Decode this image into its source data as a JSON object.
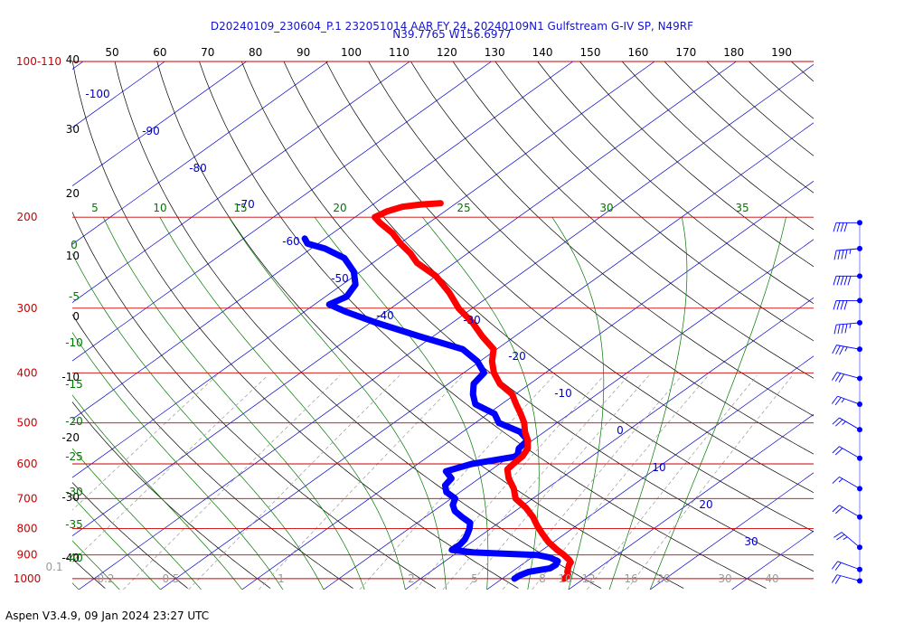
{
  "footer": "Aspen V3.4.9, 09 Jan 2024  23:27 UTC",
  "chart_data": {
    "type": "skew-t",
    "title": "D20240109_230604_P.1 232051014 AAR FY 24, 20240109N1 Gulfstream G-IV SP, N49RF",
    "subtitle": "N39.7765 W156.6977",
    "colors": {
      "title": "#1515c8",
      "isobar": "#cc0000",
      "isotherm": "#0000cc",
      "dry_adiabat": "#000000",
      "moist_adiabat": "#007700",
      "mixing_ratio": "#9a9a9a",
      "temperature": "#ff0000",
      "dewpoint": "#0000ff",
      "wind": "#0000ff"
    },
    "pressure_labels": [
      "100-110",
      "200",
      "300",
      "400",
      "500",
      "600",
      "700",
      "800",
      "900",
      "1000"
    ],
    "dry_adiabat_top_labels": [
      "50",
      "60",
      "70",
      "80",
      "90",
      "100",
      "110",
      "120",
      "130",
      "140",
      "150",
      "160",
      "170",
      "180",
      "190"
    ],
    "left_height_labels": [
      "40",
      "30",
      "20",
      "10",
      "0",
      "-10",
      "-20",
      "-30",
      "-40"
    ],
    "isotherm_labels": [
      "-100",
      "-90",
      "-80",
      "-70",
      "-60",
      "-50",
      "-40",
      "-30",
      "-20",
      "-10",
      "0",
      "10",
      "20",
      "30"
    ],
    "moist_top_labels": [
      "5",
      "10",
      "15",
      "20",
      "25",
      "30",
      "35"
    ],
    "moist_left_labels": [
      "0",
      "-5",
      "-10",
      "-15",
      "-20",
      "-25",
      "-30",
      "-35",
      "-40"
    ],
    "mixing_ratio_labels": [
      "0.1",
      "0.2",
      "0.5",
      "1",
      "2",
      "5",
      "8",
      "10",
      "12",
      "16",
      "20",
      "30",
      "40"
    ],
    "temperature_profile": [
      {
        "p": 1000,
        "t": 27.6
      },
      {
        "p": 985,
        "t": 27.5
      },
      {
        "p": 970,
        "t": 26.8
      },
      {
        "p": 955,
        "t": 26.3
      },
      {
        "p": 940,
        "t": 25.8
      },
      {
        "p": 930,
        "t": 25.6
      },
      {
        "p": 920,
        "t": 25.0
      },
      {
        "p": 900,
        "t": 23.5
      },
      {
        "p": 880,
        "t": 21.8
      },
      {
        "p": 850,
        "t": 19.4
      },
      {
        "p": 820,
        "t": 17.3
      },
      {
        "p": 790,
        "t": 15.2
      },
      {
        "p": 760,
        "t": 13.2
      },
      {
        "p": 730,
        "t": 10.8
      },
      {
        "p": 700,
        "t": 7.9
      },
      {
        "p": 670,
        "t": 6.0
      },
      {
        "p": 640,
        "t": 3.6
      },
      {
        "p": 615,
        "t": 1.9
      },
      {
        "p": 600,
        "t": 1.7
      },
      {
        "p": 580,
        "t": 1.5
      },
      {
        "p": 560,
        "t": 0.8
      },
      {
        "p": 540,
        "t": -0.6
      },
      {
        "p": 520,
        "t": -2.4
      },
      {
        "p": 500,
        "t": -4.0
      },
      {
        "p": 480,
        "t": -6.0
      },
      {
        "p": 460,
        "t": -8.2
      },
      {
        "p": 440,
        "t": -10.4
      },
      {
        "p": 420,
        "t": -13.7
      },
      {
        "p": 400,
        "t": -16.3
      },
      {
        "p": 380,
        "t": -18.5
      },
      {
        "p": 360,
        "t": -20.4
      },
      {
        "p": 340,
        "t": -24.0
      },
      {
        "p": 320,
        "t": -27.5
      },
      {
        "p": 300,
        "t": -31.7
      },
      {
        "p": 280,
        "t": -35.5
      },
      {
        "p": 260,
        "t": -40.0
      },
      {
        "p": 245,
        "t": -44.6
      },
      {
        "p": 235,
        "t": -47.0
      },
      {
        "p": 225,
        "t": -49.9
      },
      {
        "p": 215,
        "t": -52.6
      },
      {
        "p": 205,
        "t": -56.0
      },
      {
        "p": 200,
        "t": -57.6
      },
      {
        "p": 195,
        "t": -57.1
      },
      {
        "p": 191,
        "t": -56.0
      },
      {
        "p": 189,
        "t": -54.1
      },
      {
        "p": 188,
        "t": -51.9
      }
    ],
    "dewpoint_profile": [
      {
        "p": 1000,
        "t": 21.5
      },
      {
        "p": 985,
        "t": 21.6
      },
      {
        "p": 970,
        "t": 22.1
      },
      {
        "p": 955,
        "t": 24.1
      },
      {
        "p": 940,
        "t": 24.2
      },
      {
        "p": 925,
        "t": 23.8
      },
      {
        "p": 910,
        "t": 22.2
      },
      {
        "p": 900,
        "t": 20.2
      },
      {
        "p": 895,
        "t": 15.9
      },
      {
        "p": 890,
        "t": 12.0
      },
      {
        "p": 880,
        "t": 8.9
      },
      {
        "p": 860,
        "t": 9.0
      },
      {
        "p": 840,
        "t": 8.7
      },
      {
        "p": 820,
        "t": 8.1
      },
      {
        "p": 800,
        "t": 7.4
      },
      {
        "p": 780,
        "t": 6.5
      },
      {
        "p": 760,
        "t": 4.5
      },
      {
        "p": 740,
        "t": 2.6
      },
      {
        "p": 720,
        "t": 1.3
      },
      {
        "p": 700,
        "t": 0.5
      },
      {
        "p": 680,
        "t": -1.7
      },
      {
        "p": 660,
        "t": -3.0
      },
      {
        "p": 640,
        "t": -3.4
      },
      {
        "p": 620,
        "t": -5.3
      },
      {
        "p": 600,
        "t": -3.4
      },
      {
        "p": 580,
        "t": 0.9
      },
      {
        "p": 560,
        "t": -0.3
      },
      {
        "p": 540,
        "t": -0.6
      },
      {
        "p": 520,
        "t": -3.0
      },
      {
        "p": 500,
        "t": -7.1
      },
      {
        "p": 480,
        "t": -9.2
      },
      {
        "p": 460,
        "t": -13.2
      },
      {
        "p": 440,
        "t": -15.2
      },
      {
        "p": 420,
        "t": -16.9
      },
      {
        "p": 400,
        "t": -17.5
      },
      {
        "p": 380,
        "t": -20.3
      },
      {
        "p": 360,
        "t": -24.2
      },
      {
        "p": 340,
        "t": -31.7
      },
      {
        "p": 320,
        "t": -39.3
      },
      {
        "p": 305,
        "t": -44.8
      },
      {
        "p": 295,
        "t": -48.2
      },
      {
        "p": 285,
        "t": -47.4
      },
      {
        "p": 270,
        "t": -48.4
      },
      {
        "p": 255,
        "t": -50.8
      },
      {
        "p": 240,
        "t": -54.3
      },
      {
        "p": 230,
        "t": -58.3
      },
      {
        "p": 225,
        "t": -61.3
      },
      {
        "p": 220,
        "t": -62.5
      }
    ],
    "winds": [
      {
        "p": 205,
        "dir": 270,
        "speed": 40
      },
      {
        "p": 230,
        "dir": 265,
        "speed": 45
      },
      {
        "p": 260,
        "dir": 270,
        "speed": 50
      },
      {
        "p": 290,
        "dir": 270,
        "speed": 40
      },
      {
        "p": 320,
        "dir": 265,
        "speed": 45
      },
      {
        "p": 360,
        "dir": 280,
        "speed": 35
      },
      {
        "p": 410,
        "dir": 285,
        "speed": 30
      },
      {
        "p": 460,
        "dir": 290,
        "speed": 25
      },
      {
        "p": 515,
        "dir": 300,
        "speed": 25
      },
      {
        "p": 585,
        "dir": 300,
        "speed": 20
      },
      {
        "p": 670,
        "dir": 300,
        "speed": 15
      },
      {
        "p": 760,
        "dir": 300,
        "speed": 20
      },
      {
        "p": 870,
        "dir": 310,
        "speed": 25
      },
      {
        "p": 960,
        "dir": 290,
        "speed": 20
      },
      {
        "p": 1010,
        "dir": 285,
        "speed": 20
      }
    ]
  }
}
